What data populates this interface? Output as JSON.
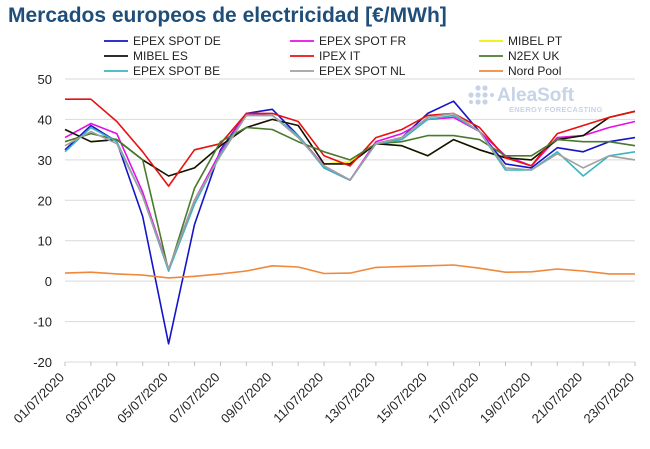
{
  "chart_data": {
    "type": "line",
    "title": "Mercados europeos de electricidad [€/MWh]",
    "xlabel": "",
    "ylabel": "",
    "ylim": [
      -20,
      50
    ],
    "yticks": [
      -20,
      -10,
      0,
      10,
      20,
      30,
      40,
      50
    ],
    "grid": "horizontal",
    "legend_position": "top",
    "x": [
      "01/07/2020",
      "02/07/2020",
      "03/07/2020",
      "04/07/2020",
      "05/07/2020",
      "06/07/2020",
      "07/07/2020",
      "08/07/2020",
      "09/07/2020",
      "10/07/2020",
      "11/07/2020",
      "12/07/2020",
      "13/07/2020",
      "14/07/2020",
      "15/07/2020",
      "16/07/2020",
      "17/07/2020",
      "18/07/2020",
      "19/07/2020",
      "20/07/2020",
      "21/07/2020",
      "22/07/2020",
      "23/07/2020"
    ],
    "xtick_labels": [
      "01/07/2020",
      "03/07/2020",
      "05/07/2020",
      "07/07/2020",
      "09/07/2020",
      "11/07/2020",
      "13/07/2020",
      "15/07/2020",
      "17/07/2020",
      "19/07/2020",
      "21/07/2020",
      "23/07/2020"
    ],
    "series": [
      {
        "name": "EPEX SPOT DE",
        "color": "#1515c8",
        "values": [
          32.5,
          38.5,
          34.5,
          16.0,
          -15.5,
          14.0,
          32.5,
          41.5,
          42.5,
          36.0,
          28.0,
          25.0,
          34.0,
          35.5,
          41.5,
          44.5,
          37.0,
          29.0,
          28.0,
          33.0,
          32.0,
          34.5,
          35.5
        ]
      },
      {
        "name": "EPEX SPOT FR",
        "color": "#e60ee6",
        "values": [
          35.5,
          39.0,
          36.5,
          22.0,
          3.0,
          20.0,
          32.0,
          41.5,
          41.0,
          36.0,
          28.5,
          25.0,
          34.5,
          36.5,
          40.0,
          40.5,
          37.0,
          31.0,
          28.5,
          35.5,
          36.0,
          38.0,
          39.5
        ]
      },
      {
        "name": "MIBEL PT",
        "color": "#f0f000",
        "values": [
          37.5,
          34.5,
          35.0,
          30.0,
          26.0,
          28.0,
          33.5,
          38.0,
          40.0,
          38.5,
          29.0,
          29.5,
          34.0,
          33.5,
          31.0,
          35.0,
          32.5,
          30.5,
          30.0,
          35.0,
          36.0,
          40.5,
          42.0
        ]
      },
      {
        "name": "MIBEL ES",
        "color": "#111111",
        "values": [
          37.5,
          34.5,
          35.0,
          30.0,
          26.0,
          28.0,
          33.5,
          38.0,
          40.0,
          38.5,
          29.0,
          29.0,
          34.0,
          33.5,
          31.0,
          35.0,
          32.5,
          30.5,
          30.0,
          35.0,
          36.0,
          40.5,
          42.0
        ]
      },
      {
        "name": "IPEX IT",
        "color": "#e81010",
        "values": [
          45.0,
          45.0,
          39.5,
          32.0,
          23.5,
          32.5,
          34.0,
          41.5,
          41.5,
          39.5,
          31.0,
          28.5,
          35.5,
          37.5,
          41.0,
          41.5,
          38.0,
          30.5,
          28.5,
          36.5,
          38.5,
          40.5,
          42.0
        ]
      },
      {
        "name": "N2EX UK",
        "color": "#4a7a2e",
        "values": [
          34.5,
          36.5,
          35.0,
          30.0,
          2.5,
          23.0,
          34.5,
          38.0,
          37.5,
          34.5,
          32.0,
          30.0,
          34.0,
          34.5,
          36.0,
          36.0,
          35.0,
          31.0,
          31.0,
          35.0,
          34.5,
          34.5,
          33.5
        ]
      },
      {
        "name": "EPEX SPOT BE",
        "color": "#3cb4c0",
        "values": [
          32.0,
          38.0,
          34.5,
          21.0,
          2.5,
          19.0,
          31.5,
          41.0,
          41.0,
          36.0,
          28.0,
          25.0,
          34.0,
          35.0,
          40.0,
          41.0,
          37.0,
          27.5,
          27.5,
          32.0,
          26.0,
          31.0,
          32.0
        ]
      },
      {
        "name": "EPEX SPOT NL",
        "color": "#a0a0a0",
        "values": [
          33.5,
          37.0,
          34.0,
          21.0,
          3.0,
          20.0,
          31.0,
          41.0,
          41.0,
          35.5,
          28.5,
          25.0,
          34.0,
          35.5,
          40.5,
          41.5,
          37.0,
          28.0,
          27.5,
          31.5,
          28.0,
          31.0,
          30.0
        ]
      },
      {
        "name": "Nord Pool",
        "color": "#f0883c",
        "values": [
          2.0,
          2.2,
          1.8,
          1.5,
          0.8,
          1.2,
          1.8,
          2.5,
          3.8,
          3.5,
          1.9,
          2.0,
          3.4,
          3.6,
          3.8,
          4.0,
          3.2,
          2.2,
          2.3,
          3.0,
          2.5,
          1.8,
          1.8
        ]
      }
    ]
  },
  "logo": {
    "name": "AleaSoft",
    "tagline": "ENERGY FORECASTING"
  }
}
